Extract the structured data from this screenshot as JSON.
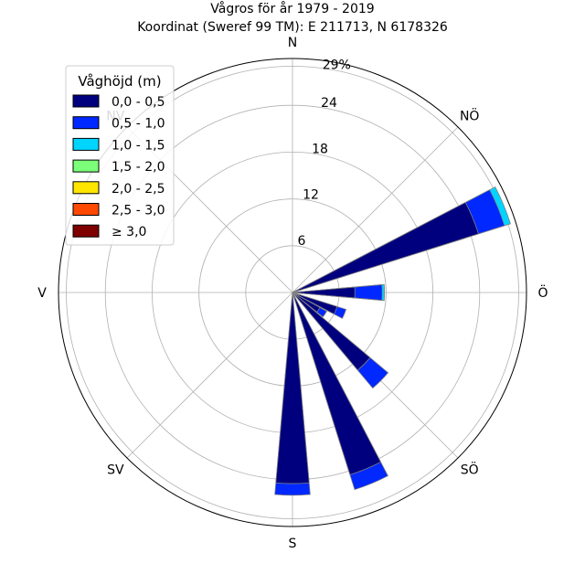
{
  "title_line1": "Vågros för år 1979 - 2019",
  "title_line2": "Koordinat (Sweref 99 TM): E 211713, N 6178326",
  "chart_data": {
    "type": "wind-rose",
    "directions": [
      "N",
      "NÖ",
      "Ö",
      "SÖ",
      "S",
      "SV",
      "V",
      "NV"
    ],
    "radial_ticks": [
      "6",
      "12",
      "18",
      "24",
      "29%"
    ],
    "radial_tick_values": [
      6,
      12,
      18,
      24,
      29
    ],
    "rmax": 30,
    "legend_title": "Våghöjd (m)",
    "legend_position": "top-left",
    "series": [
      {
        "name": "0,0 - 0,5",
        "color": "#00007f"
      },
      {
        "name": "0,5 - 1,0",
        "color": "#0028ff"
      },
      {
        "name": "1,0 - 1,5",
        "color": "#00d5ff"
      },
      {
        "name": "1,5 - 2,0",
        "color": "#7cff79"
      },
      {
        "name": "2,0 - 2,5",
        "color": "#ffe600"
      },
      {
        "name": "2,5 - 3,0",
        "color": "#ff4800"
      },
      {
        "name": "≥ 3,0",
        "color": "#7f0000"
      }
    ],
    "sector_bearings_deg": [
      67.5,
      90,
      112.5,
      123.75,
      135,
      157.5,
      180
    ],
    "sector_width_deg": 10,
    "cumulative_values": [
      [
        25.0,
        28.5,
        29.3,
        29.3,
        29.3,
        29.3,
        29.3
      ],
      [
        8.0,
        11.5,
        11.8,
        11.8,
        11.8,
        11.8,
        11.8
      ],
      [
        6.0,
        7.2,
        7.2,
        7.2,
        7.2,
        7.2,
        7.2
      ],
      [
        4.0,
        5.0,
        5.0,
        5.0,
        5.0,
        5.0,
        5.0
      ],
      [
        13.0,
        16.0,
        16.0,
        16.0,
        16.0,
        16.0,
        16.0
      ],
      [
        24.5,
        26.5,
        26.5,
        26.5,
        26.5,
        26.5,
        26.5
      ],
      [
        24.5,
        26.0,
        26.0,
        26.0,
        26.0,
        26.0,
        26.0
      ]
    ],
    "grid": true
  }
}
